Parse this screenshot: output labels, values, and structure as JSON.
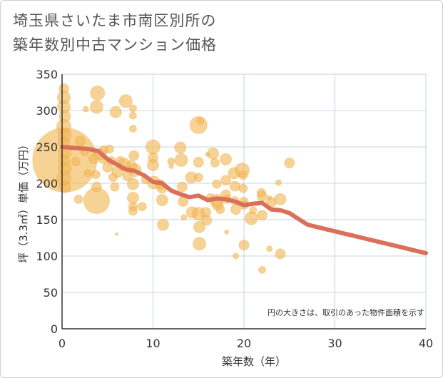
{
  "title_line1": "埼玉県さいたま市南区別所の",
  "title_line2": "築年数別中古マンション価格",
  "chart_data": {
    "type": "scatter",
    "title": "埼玉県さいたま市南区別所の築年数別中古マンション価格",
    "xlabel": "築年数（年）",
    "ylabel": "坪（3.3㎡）単価（万円）",
    "xlim": [
      0,
      40
    ],
    "ylim": [
      0,
      350
    ],
    "xticks": [
      "0",
      "10",
      "20",
      "30",
      "40"
    ],
    "yticks": [
      "0",
      "50",
      "100",
      "150",
      "200",
      "250",
      "300",
      "350"
    ],
    "note": "円の大きさは、取引のあった物件面積を示す",
    "colors": {
      "bubble": "#f2b654",
      "trend": "#d9705a",
      "grid": "#c5d3e3",
      "axis": "#333333"
    },
    "bubbles": [
      {
        "x": 0.3,
        "y": 232,
        "s": 45
      },
      {
        "x": 0.2,
        "y": 330,
        "s": 7
      },
      {
        "x": 0.2,
        "y": 318,
        "s": 9
      },
      {
        "x": 0.2,
        "y": 305,
        "s": 9
      },
      {
        "x": 0.3,
        "y": 292,
        "s": 8
      },
      {
        "x": 0.2,
        "y": 278,
        "s": 10
      },
      {
        "x": 0.3,
        "y": 266,
        "s": 9
      },
      {
        "x": 0.2,
        "y": 256,
        "s": 8
      },
      {
        "x": 0.3,
        "y": 243,
        "s": 9
      },
      {
        "x": 0.2,
        "y": 231,
        "s": 8
      },
      {
        "x": 0.3,
        "y": 220,
        "s": 9
      },
      {
        "x": 0.2,
        "y": 207,
        "s": 10
      },
      {
        "x": 0.3,
        "y": 195,
        "s": 8
      },
      {
        "x": 1.5,
        "y": 230,
        "s": 6
      },
      {
        "x": 1.8,
        "y": 178,
        "s": 6
      },
      {
        "x": 2.0,
        "y": 258,
        "s": 7
      },
      {
        "x": 2.5,
        "y": 244,
        "s": 6
      },
      {
        "x": 2.6,
        "y": 302,
        "s": 4
      },
      {
        "x": 2.8,
        "y": 214,
        "s": 5
      },
      {
        "x": 3.5,
        "y": 234,
        "s": 7
      },
      {
        "x": 3.7,
        "y": 212,
        "s": 6
      },
      {
        "x": 3.8,
        "y": 195,
        "s": 7
      },
      {
        "x": 3.8,
        "y": 176,
        "s": 18
      },
      {
        "x": 3.8,
        "y": 305,
        "s": 9
      },
      {
        "x": 3.9,
        "y": 324,
        "s": 10
      },
      {
        "x": 4.2,
        "y": 240,
        "s": 8
      },
      {
        "x": 4.5,
        "y": 233,
        "s": 6
      },
      {
        "x": 4.6,
        "y": 246,
        "s": 6
      },
      {
        "x": 5.0,
        "y": 222,
        "s": 7
      },
      {
        "x": 5.2,
        "y": 247,
        "s": 6
      },
      {
        "x": 5.4,
        "y": 231,
        "s": 6
      },
      {
        "x": 5.6,
        "y": 208,
        "s": 6
      },
      {
        "x": 5.8,
        "y": 195,
        "s": 6
      },
      {
        "x": 5.9,
        "y": 298,
        "s": 8
      },
      {
        "x": 6.0,
        "y": 130,
        "s": 2
      },
      {
        "x": 6.1,
        "y": 216,
        "s": 8
      },
      {
        "x": 6.4,
        "y": 231,
        "s": 6
      },
      {
        "x": 6.8,
        "y": 226,
        "s": 9
      },
      {
        "x": 7.0,
        "y": 313,
        "s": 9
      },
      {
        "x": 7.2,
        "y": 210,
        "s": 7
      },
      {
        "x": 7.6,
        "y": 223,
        "s": 8
      },
      {
        "x": 7.8,
        "y": 303,
        "s": 5
      },
      {
        "x": 7.8,
        "y": 293,
        "s": 5
      },
      {
        "x": 7.8,
        "y": 275,
        "s": 5
      },
      {
        "x": 7.9,
        "y": 238,
        "s": 7
      },
      {
        "x": 7.8,
        "y": 199,
        "s": 8
      },
      {
        "x": 7.8,
        "y": 180,
        "s": 8
      },
      {
        "x": 7.8,
        "y": 168,
        "s": 6
      },
      {
        "x": 7.8,
        "y": 162,
        "s": 6
      },
      {
        "x": 8.0,
        "y": 218,
        "s": 9
      },
      {
        "x": 8.8,
        "y": 168,
        "s": 6
      },
      {
        "x": 9.2,
        "y": 205,
        "s": 6
      },
      {
        "x": 10.0,
        "y": 250,
        "s": 10
      },
      {
        "x": 10.0,
        "y": 235,
        "s": 7
      },
      {
        "x": 10.0,
        "y": 225,
        "s": 8
      },
      {
        "x": 10.1,
        "y": 201,
        "s": 9
      },
      {
        "x": 10.8,
        "y": 198,
        "s": 7
      },
      {
        "x": 11.0,
        "y": 193,
        "s": 7
      },
      {
        "x": 11.0,
        "y": 177,
        "s": 8
      },
      {
        "x": 11.1,
        "y": 143,
        "s": 8
      },
      {
        "x": 12.0,
        "y": 223,
        "s": 3
      },
      {
        "x": 12.0,
        "y": 230,
        "s": 5
      },
      {
        "x": 13.0,
        "y": 249,
        "s": 8
      },
      {
        "x": 13.1,
        "y": 232,
        "s": 9
      },
      {
        "x": 13.2,
        "y": 195,
        "s": 7
      },
      {
        "x": 13.3,
        "y": 175,
        "s": 7
      },
      {
        "x": 13.4,
        "y": 153,
        "s": 4
      },
      {
        "x": 14.2,
        "y": 208,
        "s": 8
      },
      {
        "x": 14.3,
        "y": 160,
        "s": 8
      },
      {
        "x": 15.0,
        "y": 280,
        "s": 12
      },
      {
        "x": 15.0,
        "y": 229,
        "s": 7
      },
      {
        "x": 15.0,
        "y": 208,
        "s": 6
      },
      {
        "x": 15.0,
        "y": 158,
        "s": 9
      },
      {
        "x": 15.1,
        "y": 140,
        "s": 8
      },
      {
        "x": 15.1,
        "y": 117,
        "s": 9
      },
      {
        "x": 15.2,
        "y": 286,
        "s": 5
      },
      {
        "x": 15.8,
        "y": 160,
        "s": 7
      },
      {
        "x": 15.9,
        "y": 149,
        "s": 7
      },
      {
        "x": 16.0,
        "y": 240,
        "s": 3
      },
      {
        "x": 16.3,
        "y": 180,
        "s": 6
      },
      {
        "x": 16.6,
        "y": 241,
        "s": 8
      },
      {
        "x": 16.8,
        "y": 228,
        "s": 6
      },
      {
        "x": 17.0,
        "y": 199,
        "s": 6
      },
      {
        "x": 17.0,
        "y": 176,
        "s": 9
      },
      {
        "x": 17.1,
        "y": 171,
        "s": 8
      },
      {
        "x": 17.4,
        "y": 164,
        "s": 6
      },
      {
        "x": 18.0,
        "y": 233,
        "s": 8
      },
      {
        "x": 18.0,
        "y": 204,
        "s": 7
      },
      {
        "x": 18.0,
        "y": 184,
        "s": 7
      },
      {
        "x": 18.1,
        "y": 178,
        "s": 6
      },
      {
        "x": 18.1,
        "y": 133,
        "s": 3
      },
      {
        "x": 18.9,
        "y": 214,
        "s": 8
      },
      {
        "x": 19.0,
        "y": 196,
        "s": 7
      },
      {
        "x": 19.0,
        "y": 176,
        "s": 6
      },
      {
        "x": 19.1,
        "y": 164,
        "s": 7
      },
      {
        "x": 19.1,
        "y": 100,
        "s": 4
      },
      {
        "x": 19.8,
        "y": 218,
        "s": 10
      },
      {
        "x": 19.9,
        "y": 211,
        "s": 6
      },
      {
        "x": 19.9,
        "y": 193,
        "s": 6
      },
      {
        "x": 20.0,
        "y": 175,
        "s": 6
      },
      {
        "x": 20.0,
        "y": 170,
        "s": 6
      },
      {
        "x": 20.0,
        "y": 115,
        "s": 7
      },
      {
        "x": 20.8,
        "y": 152,
        "s": 9
      },
      {
        "x": 21.0,
        "y": 163,
        "s": 5
      },
      {
        "x": 21.9,
        "y": 187,
        "s": 6
      },
      {
        "x": 22.0,
        "y": 182,
        "s": 7
      },
      {
        "x": 22.0,
        "y": 156,
        "s": 7
      },
      {
        "x": 22.0,
        "y": 81,
        "s": 5
      },
      {
        "x": 22.8,
        "y": 180,
        "s": 3
      },
      {
        "x": 22.8,
        "y": 110,
        "s": 4
      },
      {
        "x": 23.0,
        "y": 174,
        "s": 7
      },
      {
        "x": 23.8,
        "y": 201,
        "s": 4
      },
      {
        "x": 24.0,
        "y": 178,
        "s": 8
      },
      {
        "x": 24.0,
        "y": 103,
        "s": 7
      },
      {
        "x": 25.0,
        "y": 228,
        "s": 7
      }
    ],
    "trend_line": {
      "x": [
        0,
        1,
        2,
        3,
        4,
        5,
        6,
        7,
        8,
        9,
        10,
        11,
        12,
        13,
        14,
        15,
        16,
        17,
        18,
        19,
        20,
        21,
        22,
        23,
        24,
        25,
        26,
        27,
        28,
        29,
        30,
        31,
        32,
        33,
        34,
        35,
        36,
        37,
        38,
        39,
        40
      ],
      "y": [
        250,
        249,
        248,
        247,
        244,
        233,
        226,
        219,
        217,
        211,
        202,
        200,
        190,
        185,
        181,
        183,
        177,
        179,
        178,
        175,
        170,
        172,
        173,
        164,
        163,
        159,
        151,
        143,
        140,
        137,
        134,
        131,
        128,
        125,
        122,
        119,
        116,
        113,
        110,
        107,
        104
      ]
    }
  }
}
